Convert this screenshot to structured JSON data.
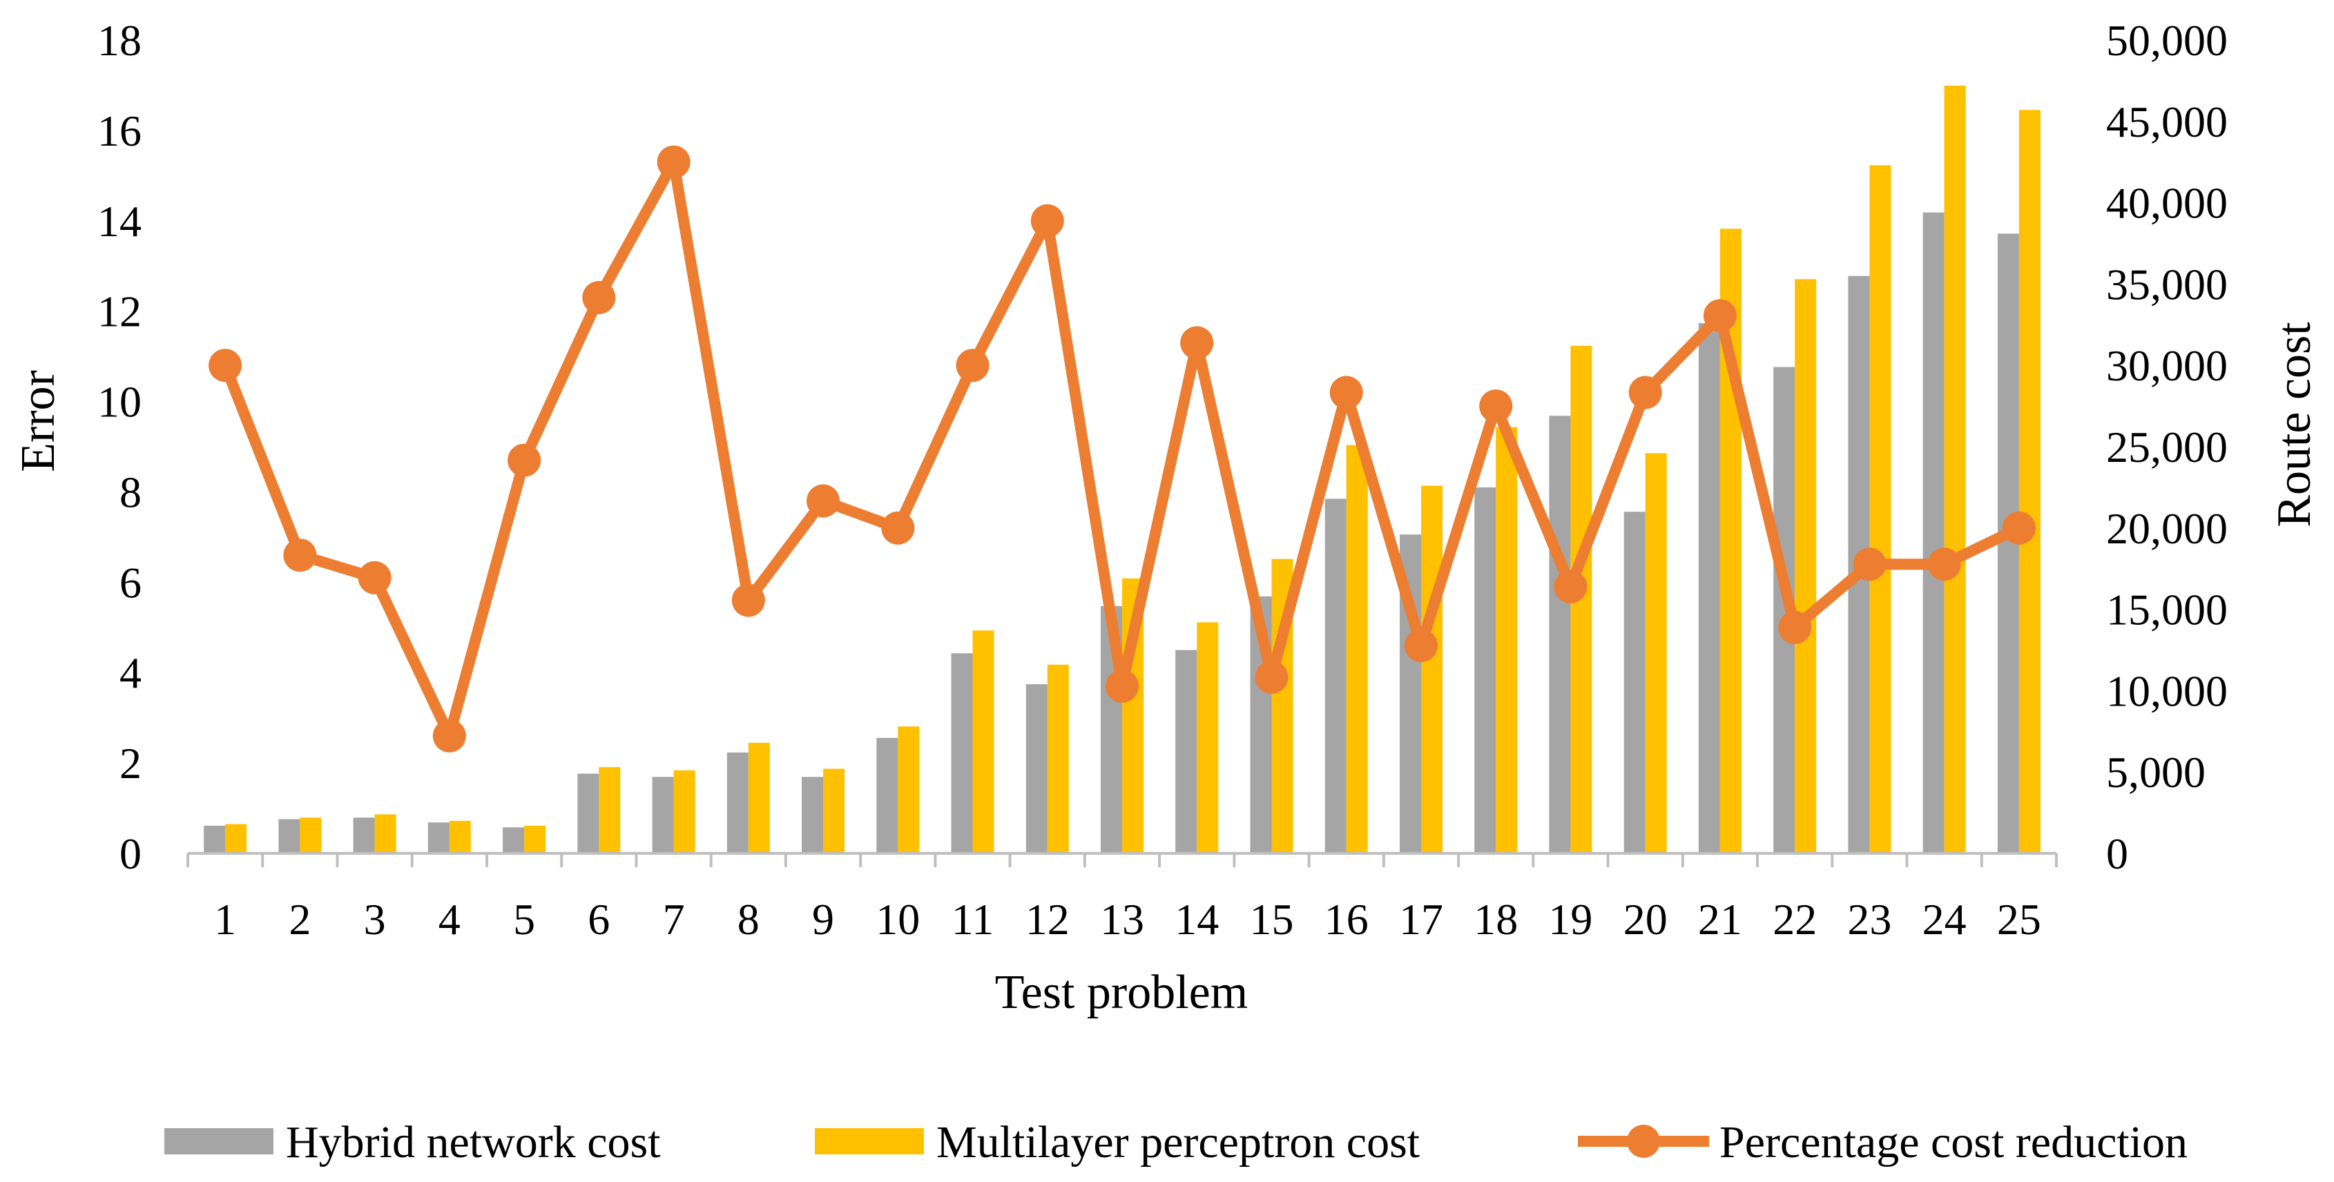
{
  "chart_data": {
    "type": "bar+line",
    "title": "",
    "xlabel": "Test problem",
    "ylabel_left": "Error",
    "ylabel_right": "Route cost",
    "categories": [
      "1",
      "2",
      "3",
      "4",
      "5",
      "6",
      "7",
      "8",
      "9",
      "10",
      "11",
      "12",
      "13",
      "14",
      "15",
      "16",
      "17",
      "18",
      "19",
      "20",
      "21",
      "22",
      "23",
      "24",
      "25"
    ],
    "ylim_left": [
      0,
      18
    ],
    "yticks_left": [
      "0",
      "2",
      "4",
      "6",
      "8",
      "10",
      "12",
      "14",
      "16",
      "18"
    ],
    "ylim_right": [
      0,
      50000
    ],
    "yticks_right": [
      "0",
      "5,000",
      "10,000",
      "15,000",
      "20,000",
      "25,000",
      "30,000",
      "35,000",
      "40,000",
      "45,000",
      "50,000"
    ],
    "grid": false,
    "legend_position": "bottom",
    "series": [
      {
        "name": "Hybrid network cost",
        "kind": "bar",
        "axis": "right",
        "color": "#a5a5a5",
        "values": [
          1700,
          2100,
          2200,
          1900,
          1600,
          4900,
          4700,
          6200,
          4700,
          7100,
          12300,
          10400,
          15200,
          12500,
          15800,
          21800,
          19600,
          22500,
          26900,
          21000,
          32600,
          29900,
          35500,
          39400,
          38100
        ]
      },
      {
        "name": "Multilayer perceptron cost",
        "kind": "bar",
        "axis": "right",
        "color": "#ffc000",
        "values": [
          1800,
          2200,
          2400,
          2000,
          1700,
          5300,
          5100,
          6800,
          5200,
          7800,
          13700,
          11600,
          16900,
          14200,
          18100,
          25100,
          22600,
          26200,
          31200,
          24600,
          38400,
          35300,
          42300,
          47200,
          45700
        ]
      },
      {
        "name": "Percentage cost reduction",
        "kind": "line",
        "axis": "left",
        "color": "#ed7d31",
        "values": [
          10.8,
          6.6,
          6.1,
          2.6,
          8.7,
          12.3,
          15.3,
          5.6,
          7.8,
          7.2,
          10.8,
          14.0,
          3.7,
          11.3,
          3.9,
          10.2,
          4.6,
          9.9,
          5.9,
          10.2,
          11.9,
          5.0,
          6.4,
          6.4,
          7.2
        ]
      }
    ]
  }
}
